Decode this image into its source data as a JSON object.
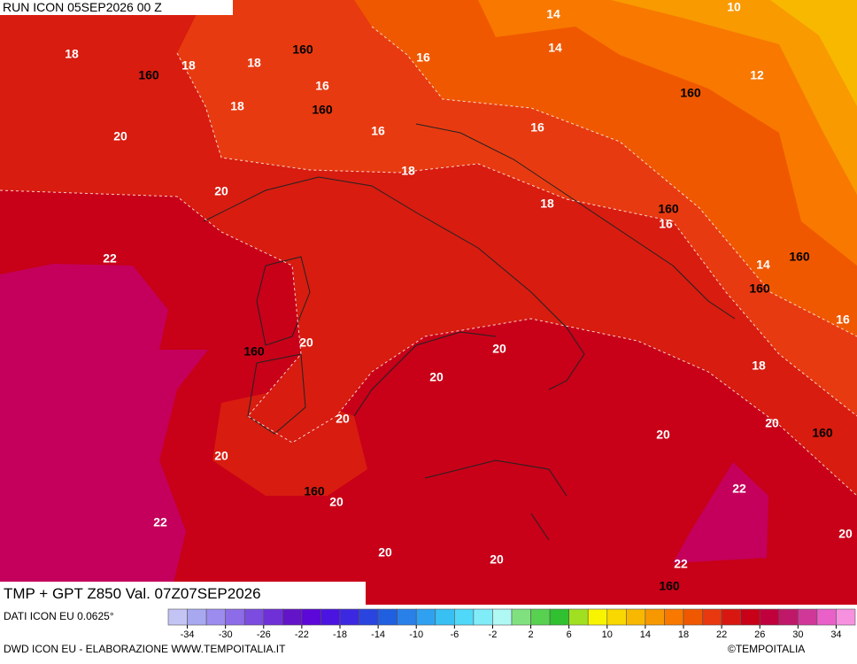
{
  "header": {
    "run": "RUN ICON 05SEP2026 00 Z",
    "title": "TMP + GPT Z850 Val. 07Z07SEP2026"
  },
  "footer": {
    "source": "DATI ICON EU 0.0625°",
    "credit": "DWD ICON EU - ELABORAZIONE WWW.TEMPOITALIA.IT",
    "copyright": "©TEMPOITALIA"
  },
  "map_labels": [
    18,
    18,
    18,
    160,
    160,
    16,
    14,
    14,
    10,
    12,
    160,
    16,
    160,
    18,
    16,
    16,
    20,
    18,
    20,
    18,
    160,
    16,
    22,
    14,
    160,
    160,
    16,
    20,
    160,
    20,
    18,
    20,
    20,
    20,
    20,
    160,
    20,
    22,
    160,
    20,
    22,
    20,
    20,
    20,
    22,
    160
  ],
  "colorbar": {
    "range": [
      -36,
      36
    ],
    "ticks": [
      -34,
      -30,
      -26,
      -22,
      -18,
      -14,
      -10,
      -6,
      -2,
      2,
      6,
      10,
      14,
      18,
      22,
      26,
      30,
      34
    ],
    "colors": [
      "#c4c4f4",
      "#a8a8f0",
      "#9c8cf0",
      "#8c6ce8",
      "#7c4ce0",
      "#7030d8",
      "#6414c8",
      "#5c08d8",
      "#4c14e0",
      "#3c28e0",
      "#2a44e0",
      "#2060e0",
      "#2880e8",
      "#30a0f0",
      "#38c0f4",
      "#50d8f8",
      "#80ecf8",
      "#b0f8f4",
      "#80e080",
      "#58d050",
      "#30c030",
      "#a0e020",
      "#f8f400",
      "#f8d800",
      "#f8b800",
      "#f89800",
      "#f87800",
      "#f05800",
      "#e83810",
      "#d81810",
      "#c80018",
      "#c0003c",
      "#c01868",
      "#d03898",
      "#e860c8",
      "#f890e0"
    ]
  }
}
